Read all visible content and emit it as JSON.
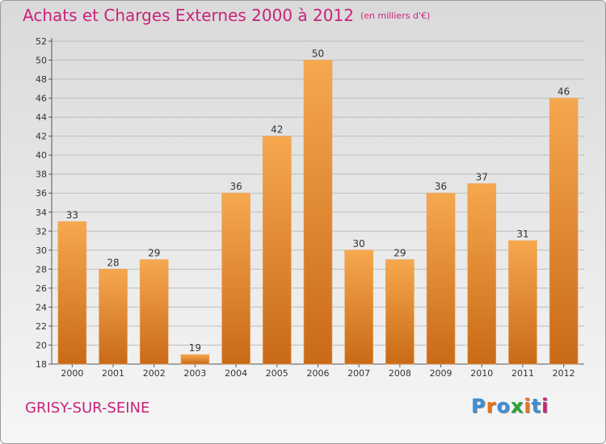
{
  "header": {
    "title": "Achats et Charges Externes 2000 à 2012",
    "subtitle": "(en milliers d'€)"
  },
  "footer": {
    "commune": "GRISY-SUR-SEINE",
    "logo_letters": [
      "P",
      "r",
      "o",
      "x",
      "i",
      "t",
      "i"
    ],
    "logo_colors": [
      "#3b8fd6",
      "#e8731c",
      "#3b8fd6",
      "#2aa53b",
      "#e8731c",
      "#3b8fd6",
      "#c8237a"
    ]
  },
  "colors": {
    "bar_top": "#f6a84e",
    "bar_bottom": "#c96a16",
    "title": "#c8237a"
  },
  "chart_data": {
    "type": "bar",
    "title": "Achats et Charges Externes 2000 à 2012",
    "subtitle": "(en milliers d'€)",
    "categories": [
      "2000",
      "2001",
      "2002",
      "2003",
      "2004",
      "2005",
      "2006",
      "2007",
      "2008",
      "2009",
      "2010",
      "2011",
      "2012"
    ],
    "values": [
      33,
      28,
      29,
      19,
      36,
      42,
      50,
      30,
      29,
      36,
      37,
      31,
      46
    ],
    "ylim": [
      18,
      52
    ],
    "yticks": [
      18,
      20,
      22,
      24,
      26,
      28,
      30,
      32,
      34,
      36,
      38,
      40,
      42,
      44,
      46,
      48,
      50,
      52
    ],
    "grid": true,
    "legend": "none"
  }
}
